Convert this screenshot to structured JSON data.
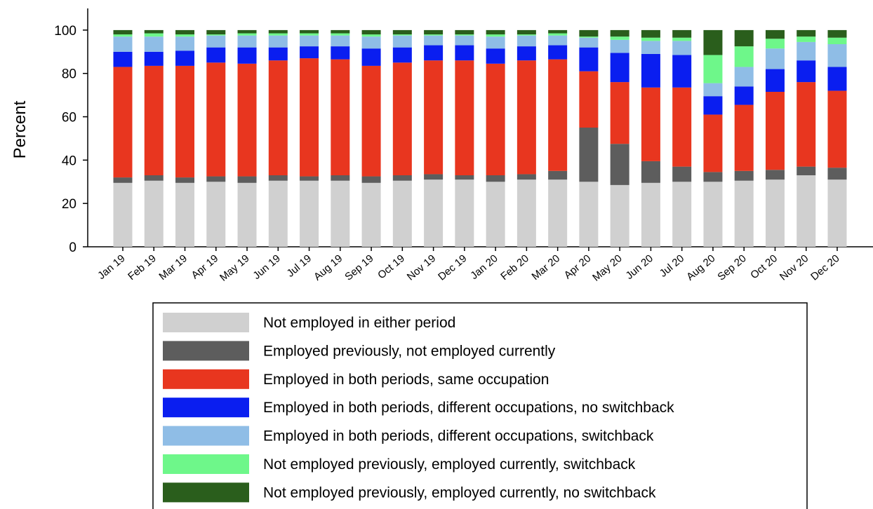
{
  "chart_data": {
    "type": "stacked_bar",
    "y_label": "Percent",
    "categories": [
      "Jan 19",
      "Feb 19",
      "Mar 19",
      "Apr 19",
      "May 19",
      "Jun 19",
      "Jul 19",
      "Aug 19",
      "Sep 19",
      "Oct 19",
      "Nov 19",
      "Dec 19",
      "Jan 20",
      "Feb 20",
      "Mar 20",
      "Apr 20",
      "May 20",
      "Jun 20",
      "Jul 20",
      "Aug 20",
      "Sep 20",
      "Oct 20",
      "Nov 20",
      "Dec 20"
    ],
    "series": [
      {
        "name": "Not employed in either period",
        "color": "#d0d0d0",
        "values": [
          29.5,
          30.5,
          29.5,
          30,
          29.5,
          30.5,
          30.5,
          30.5,
          29.5,
          30.5,
          31,
          31,
          30,
          31,
          31,
          30,
          28.5,
          29.5,
          30,
          30,
          30.5,
          31,
          33,
          31
        ]
      },
      {
        "name": "Employed previously, not employed currently",
        "color": "#5d5d5d",
        "values": [
          2.5,
          2.5,
          2.5,
          2.5,
          3,
          2.5,
          2,
          2.5,
          3,
          2.5,
          2.5,
          2,
          3,
          2.5,
          4,
          25,
          19,
          10,
          7,
          4.5,
          4.5,
          4.5,
          4,
          5.5
        ]
      },
      {
        "name": "Employed in both periods, same occupation",
        "color": "#e8361f",
        "values": [
          51,
          50.5,
          51.5,
          52.5,
          52,
          53,
          54.5,
          53.5,
          51,
          52,
          52.5,
          53,
          51.5,
          52.5,
          51.5,
          26,
          28.5,
          34,
          36.5,
          26.5,
          30.5,
          36,
          39,
          35.5
        ]
      },
      {
        "name": "Employed in both periods, different occupations, no switchback",
        "color": "#0a1ef0",
        "values": [
          7,
          6.5,
          7,
          7,
          7.5,
          6,
          5.5,
          6,
          8,
          7,
          7,
          7,
          7,
          6.5,
          6.5,
          11,
          13.5,
          15.5,
          15,
          8.5,
          8.5,
          10.5,
          10,
          11
        ]
      },
      {
        "name": "Employed in both periods, different occupations, switchback",
        "color": "#8fbde6",
        "values": [
          7,
          7,
          6.5,
          5.5,
          5.5,
          5.5,
          5,
          5,
          5.5,
          5.5,
          4.5,
          4.5,
          5.5,
          5,
          4.5,
          4.5,
          6,
          6,
          6.5,
          6,
          9,
          9.5,
          8.5,
          10.5
        ]
      },
      {
        "name": "Not employed previously, employed currently, switchback",
        "color": "#6ef78a",
        "values": [
          1,
          1.5,
          1,
          0.5,
          1,
          1,
          1,
          1,
          1,
          0.5,
          0.5,
          0.5,
          1,
          0.5,
          1,
          0.5,
          1.5,
          1.5,
          1.5,
          13,
          9.5,
          4.5,
          2.5,
          3
        ]
      },
      {
        "name": "Not employed previously, employed currently, no switchback",
        "color": "#2a5e1c",
        "values": [
          2,
          1.5,
          2,
          2,
          1.5,
          1.5,
          1.5,
          1.5,
          2,
          2,
          2,
          2,
          2,
          2,
          1.5,
          3,
          3,
          3.5,
          3.5,
          11.5,
          7.5,
          4,
          3,
          3.5
        ]
      }
    ],
    "ylim": [
      0,
      110
    ],
    "yticks": [
      0,
      20,
      40,
      60,
      80,
      100
    ],
    "grid": false
  }
}
